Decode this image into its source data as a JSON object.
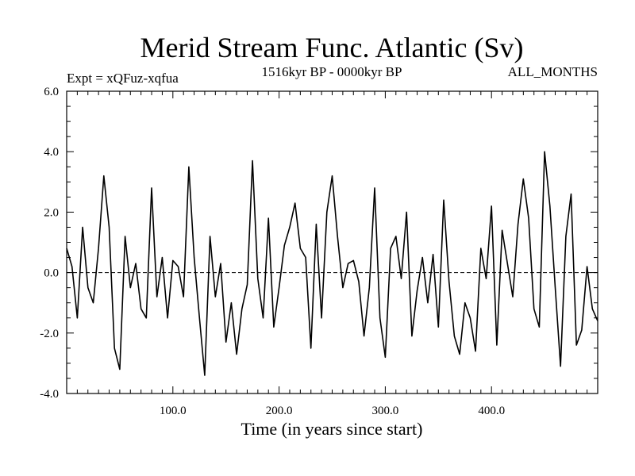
{
  "chart_data": {
    "type": "line",
    "title": "Merid Stream Func. Atlantic (Sv)",
    "expt_label": "Expt = xQFuz-xqfua",
    "period_label": "1516kyr BP - 0000kyr BP",
    "season_label": "ALL_MONTHS",
    "xlabel": "Time (in years since start)",
    "ylabel": "",
    "xlim": [
      0,
      500
    ],
    "ylim": [
      -4.0,
      6.0
    ],
    "x_ticks": [
      100,
      200,
      300,
      400
    ],
    "x_tick_labels": [
      "100.0",
      "200.0",
      "300.0",
      "400.0"
    ],
    "y_ticks": [
      -4,
      -2,
      0,
      2,
      4,
      6
    ],
    "y_tick_labels": [
      "-4.0",
      "-2.0",
      "0.0",
      "2.0",
      "4.0",
      "6.0"
    ],
    "reference_line": 0.0,
    "series": [
      {
        "name": "Merid Stream Func. Atlantic",
        "x_start": 0,
        "x_step": 5,
        "anchor_values": [
          0.8,
          0.2,
          -1.5,
          1.5,
          -0.5,
          -1.0,
          0.8,
          3.2,
          1.5,
          -2.5,
          -3.2,
          1.2,
          -0.5,
          0.3,
          -1.2,
          -1.5,
          2.8,
          -0.8,
          0.5,
          -1.5,
          0.4,
          0.2,
          -0.8,
          3.5,
          0.5,
          -1.5,
          -3.4,
          1.2,
          -0.8,
          0.3,
          -2.3,
          -1.0,
          -2.7,
          -1.2,
          -0.4,
          3.7,
          -0.2,
          -1.5,
          1.8,
          -1.8,
          -0.5,
          0.9,
          1.5,
          2.3,
          0.8,
          0.5,
          -2.5,
          1.6,
          -1.5,
          2.0,
          3.2,
          1.2,
          -0.5,
          0.3,
          0.4,
          -0.3,
          -2.1,
          -0.5,
          2.8,
          -1.5,
          -2.8,
          0.8,
          1.2,
          -0.2,
          2.0,
          -2.1,
          -0.6,
          0.5,
          -1.0,
          0.6,
          -1.8,
          2.4,
          -0.3,
          -2.1,
          -2.7,
          -1.0,
          -1.5,
          -2.6,
          0.8,
          -0.2,
          2.2,
          -2.4,
          1.4,
          0.3,
          -0.8,
          1.6,
          3.1,
          1.8,
          -1.2,
          -1.8,
          4.0,
          2.2,
          -0.5,
          -3.1,
          1.2,
          2.6,
          -2.4,
          -1.9,
          0.2,
          -1.2,
          -1.6
        ]
      }
    ]
  }
}
